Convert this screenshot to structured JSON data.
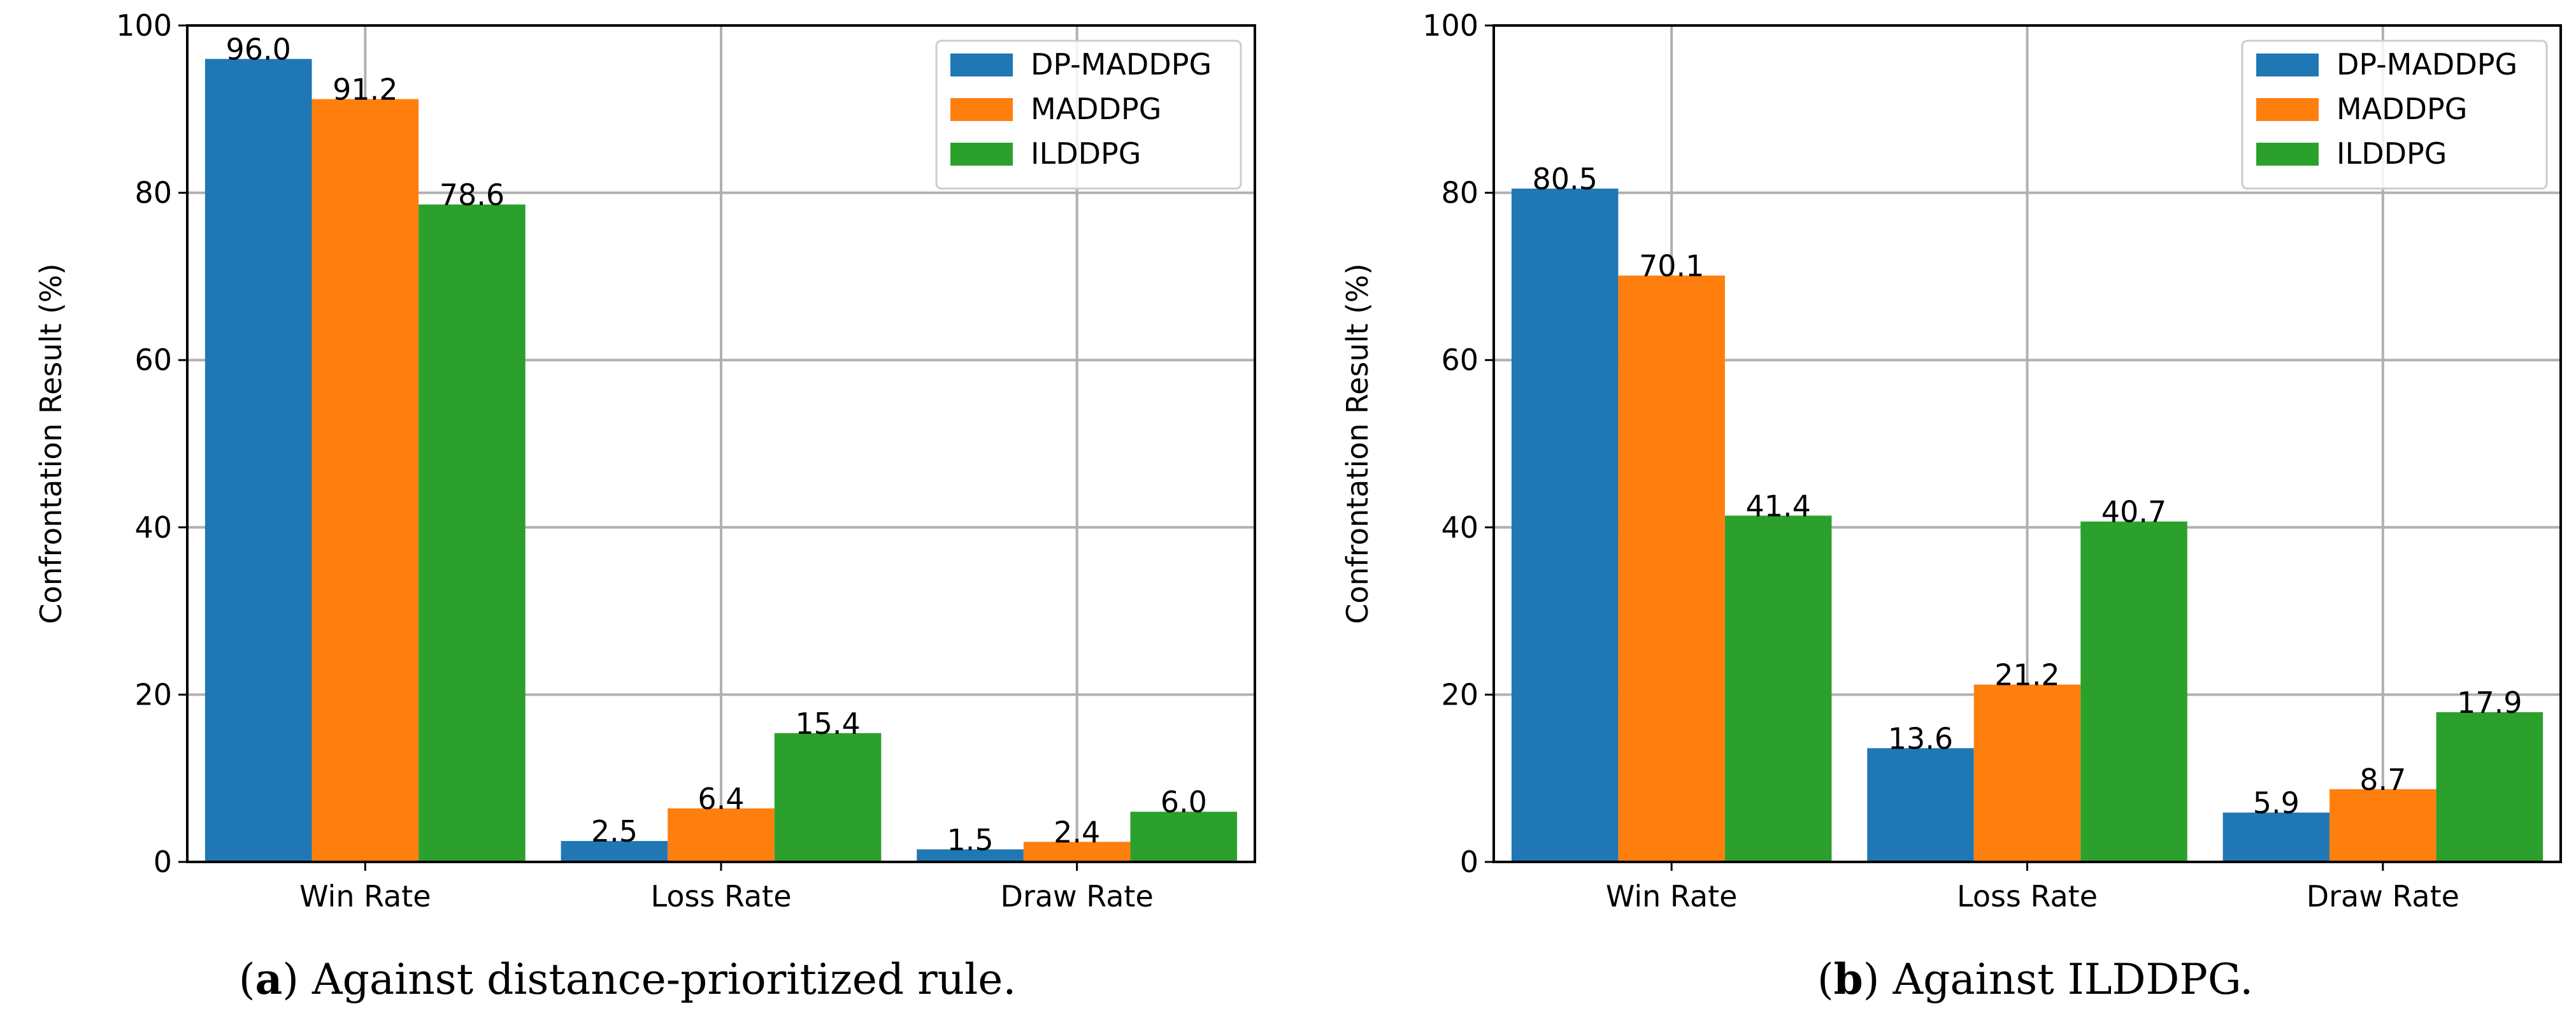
{
  "colors": {
    "DP-MADDPG": "#1f77b4",
    "MADDPG": "#ff7f0e",
    "ILDDPG": "#2ca02c",
    "grid": "#b0b0b0",
    "axis": "#000000"
  },
  "chart_data": [
    {
      "type": "bar",
      "caption_letter": "a",
      "caption_text": ") Against distance-prioritized rule.",
      "ylabel": "Confrontation Result (%)",
      "xlabel": "",
      "ylim": [
        0,
        100
      ],
      "yticks": [
        "0",
        "20",
        "40",
        "60",
        "80",
        "100"
      ],
      "grid": true,
      "legend_position": "top-right",
      "categories": [
        "Win Rate",
        "Loss Rate",
        "Draw Rate"
      ],
      "series": [
        {
          "name": "DP-MADDPG",
          "values": [
            96.0,
            2.5,
            1.5
          ],
          "labels": [
            "96.0",
            "2.5",
            "1.5"
          ]
        },
        {
          "name": "MADDPG",
          "values": [
            91.2,
            6.4,
            2.4
          ],
          "labels": [
            "91.2",
            "6.4",
            "2.4"
          ]
        },
        {
          "name": "ILDDPG",
          "values": [
            78.6,
            15.4,
            6.0
          ],
          "labels": [
            "78.6",
            "15.4",
            "6.0"
          ]
        }
      ]
    },
    {
      "type": "bar",
      "caption_letter": "b",
      "caption_text": ") Against ILDDPG.",
      "ylabel": "Confrontation Result (%)",
      "xlabel": "",
      "ylim": [
        0,
        100
      ],
      "yticks": [
        "0",
        "20",
        "40",
        "60",
        "80",
        "100"
      ],
      "grid": true,
      "legend_position": "top-right",
      "categories": [
        "Win Rate",
        "Loss Rate",
        "Draw Rate"
      ],
      "series": [
        {
          "name": "DP-MADDPG",
          "values": [
            80.5,
            13.6,
            5.9
          ],
          "labels": [
            "80.5",
            "13.6",
            "5.9"
          ]
        },
        {
          "name": "MADDPG",
          "values": [
            70.1,
            21.2,
            8.7
          ],
          "labels": [
            "70.1",
            "21.2",
            "8.7"
          ]
        },
        {
          "name": "ILDDPG",
          "values": [
            41.4,
            40.7,
            17.9
          ],
          "labels": [
            "41.4",
            "40.7",
            "17.9"
          ]
        }
      ]
    }
  ]
}
